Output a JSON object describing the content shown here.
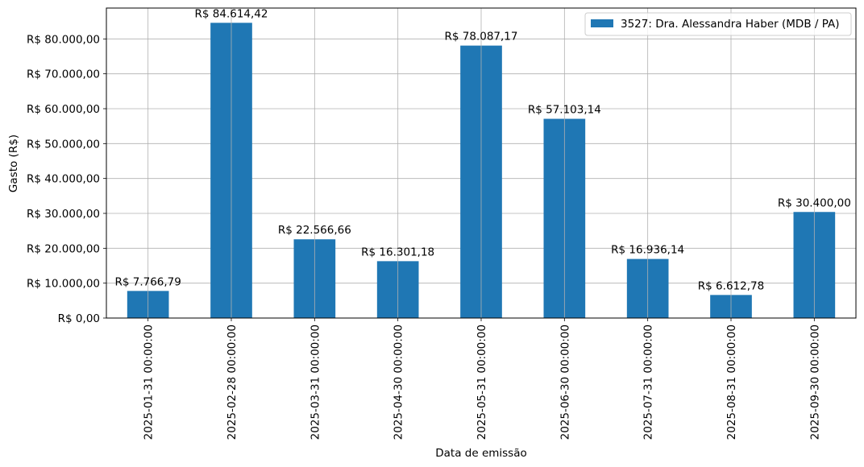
{
  "chart_data": {
    "type": "bar",
    "categories": [
      "2025-01-31 00:00:00",
      "2025-02-28 00:00:00",
      "2025-03-31 00:00:00",
      "2025-04-30 00:00:00",
      "2025-05-31 00:00:00",
      "2025-06-30 00:00:00",
      "2025-07-31 00:00:00",
      "2025-08-31 00:00:00",
      "2025-09-30 00:00:00"
    ],
    "series": [
      {
        "name": "3527: Dra. Alessandra Haber (MDB / PA)",
        "color": "#1f77b4",
        "values": [
          7766.79,
          84614.42,
          22566.66,
          16301.18,
          78087.17,
          57103.14,
          16936.14,
          6612.78,
          30400.0
        ],
        "labels": [
          "R$ 7.766,79",
          "R$ 84.614,42",
          "R$ 22.566,66",
          "R$ 16.301,18",
          "R$ 78.087,17",
          "R$ 57.103,14",
          "R$ 16.936,14",
          "R$ 6.612,78",
          "R$ 30.400,00"
        ]
      }
    ],
    "xlabel": "Data de emissão",
    "ylabel": "Gasto (R$)",
    "ylim": [
      0,
      88845.64
    ],
    "yticks": [
      0,
      10000,
      20000,
      30000,
      40000,
      50000,
      60000,
      70000,
      80000
    ],
    "ytick_labels": [
      "R$ 0,00",
      "R$ 10.000,00",
      "R$ 20.000,00",
      "R$ 30.000,00",
      "R$ 40.000,00",
      "R$ 50.000,00",
      "R$ 60.000,00",
      "R$ 70.000,00",
      "R$ 80.000,00"
    ],
    "grid": true,
    "legend_position": "top-right"
  }
}
